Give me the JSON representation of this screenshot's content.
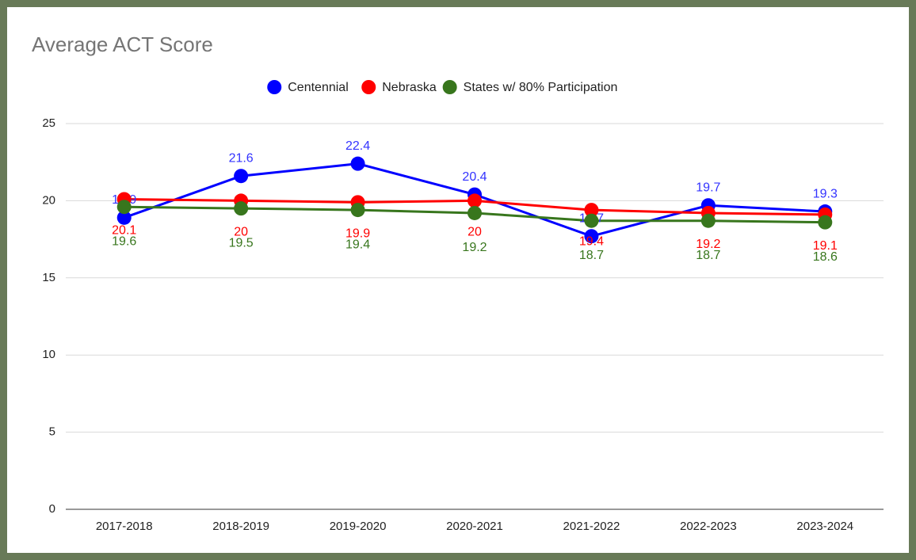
{
  "chart_data": {
    "type": "line",
    "title": "Average ACT Score",
    "categories": [
      "2017-2018",
      "2018-2019",
      "2019-2020",
      "2020-2021",
      "2021-2022",
      "2022-2023",
      "2023-2024"
    ],
    "series": [
      {
        "name": "Centennial",
        "color": "#0000ff",
        "values": [
          18.9,
          21.6,
          22.4,
          20.4,
          17.7,
          19.7,
          19.3
        ]
      },
      {
        "name": "Nebraska",
        "color": "#ff0000",
        "values": [
          20.1,
          20,
          19.9,
          20,
          19.4,
          19.2,
          19.1
        ]
      },
      {
        "name": "States w/ 80% Participation",
        "color": "#38761d",
        "values": [
          19.6,
          19.5,
          19.4,
          19.2,
          18.7,
          18.7,
          18.6
        ]
      }
    ],
    "ylim": [
      0,
      25
    ],
    "yticks": [
      0,
      5,
      10,
      15,
      20,
      25
    ],
    "grid": true,
    "legend": "top"
  }
}
